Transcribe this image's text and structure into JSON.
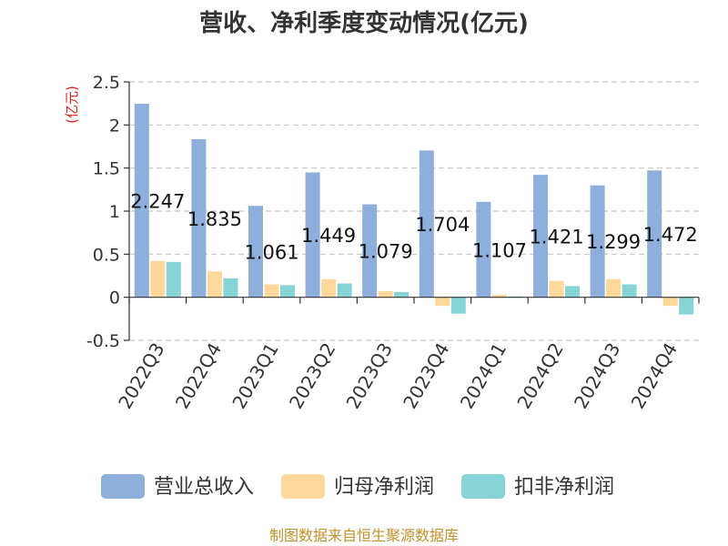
{
  "chart_data": {
    "type": "bar",
    "title": "营收、净利季度变动情况(亿元)",
    "unit_label": "(亿元)",
    "categories": [
      "2022Q3",
      "2022Q4",
      "2023Q1",
      "2023Q2",
      "2023Q3",
      "2023Q4",
      "2024Q1",
      "2024Q2",
      "2024Q3",
      "2024Q4"
    ],
    "series": [
      {
        "name": "营业总收入",
        "color": "#8eaedb",
        "values": [
          2.247,
          1.835,
          1.061,
          1.449,
          1.079,
          1.704,
          1.107,
          1.421,
          1.299,
          1.472
        ],
        "labels": [
          "2.247",
          "1.835",
          "1.061",
          "1.449",
          "1.079",
          "1.704",
          "1.107",
          "1.421",
          "1.299",
          "1.472"
        ]
      },
      {
        "name": "归母净利润",
        "color": "#fdd89a",
        "values": [
          0.42,
          0.3,
          0.15,
          0.21,
          0.07,
          -0.1,
          0.03,
          0.19,
          0.21,
          -0.1
        ]
      },
      {
        "name": "扣非净利润",
        "color": "#86d4d6",
        "values": [
          0.41,
          0.22,
          0.14,
          0.16,
          0.06,
          -0.19,
          0.01,
          0.13,
          0.15,
          -0.2
        ]
      }
    ],
    "ylim": [
      -0.5,
      2.5
    ],
    "yticks": [
      -0.5,
      0,
      0.5,
      1,
      1.5,
      2,
      2.5
    ],
    "ytick_labels": [
      "-0.5",
      "0",
      "0.5",
      "1",
      "1.5",
      "2",
      "2.5"
    ],
    "grid": true,
    "legend_position": "bottom",
    "source": "制图数据来自恒生聚源数据库"
  }
}
